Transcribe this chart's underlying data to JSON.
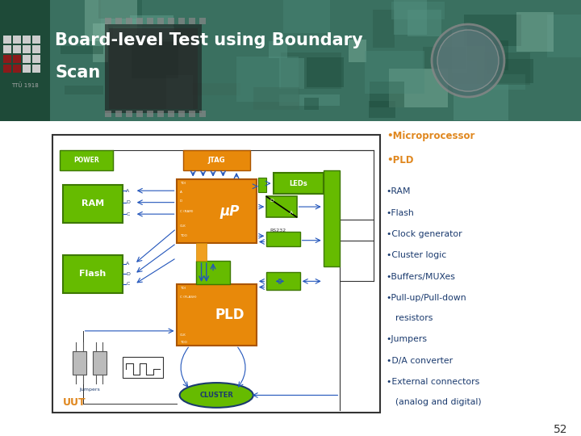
{
  "title_line1": "Board-level Test using Boundary",
  "title_line2": "Scan",
  "orange": "#e8890a",
  "green_b": "#66bb00",
  "green_d": "#3d7800",
  "blue_l": "#2255bb",
  "white": "#ffffff",
  "page_num": "52",
  "bullets_orange": [
    "Microprocessor",
    "PLD"
  ],
  "bullets_blue": [
    [
      "RAM"
    ],
    [
      "Flash"
    ],
    [
      "Clock generator"
    ],
    [
      "Cluster logic"
    ],
    [
      "Buffers/MUXes"
    ],
    [
      "Pull-up/Pull-down",
      "resistors"
    ],
    [
      "Jumpers"
    ],
    [
      "D/A converter"
    ],
    [
      "External connectors",
      "(analog and digital)"
    ]
  ]
}
